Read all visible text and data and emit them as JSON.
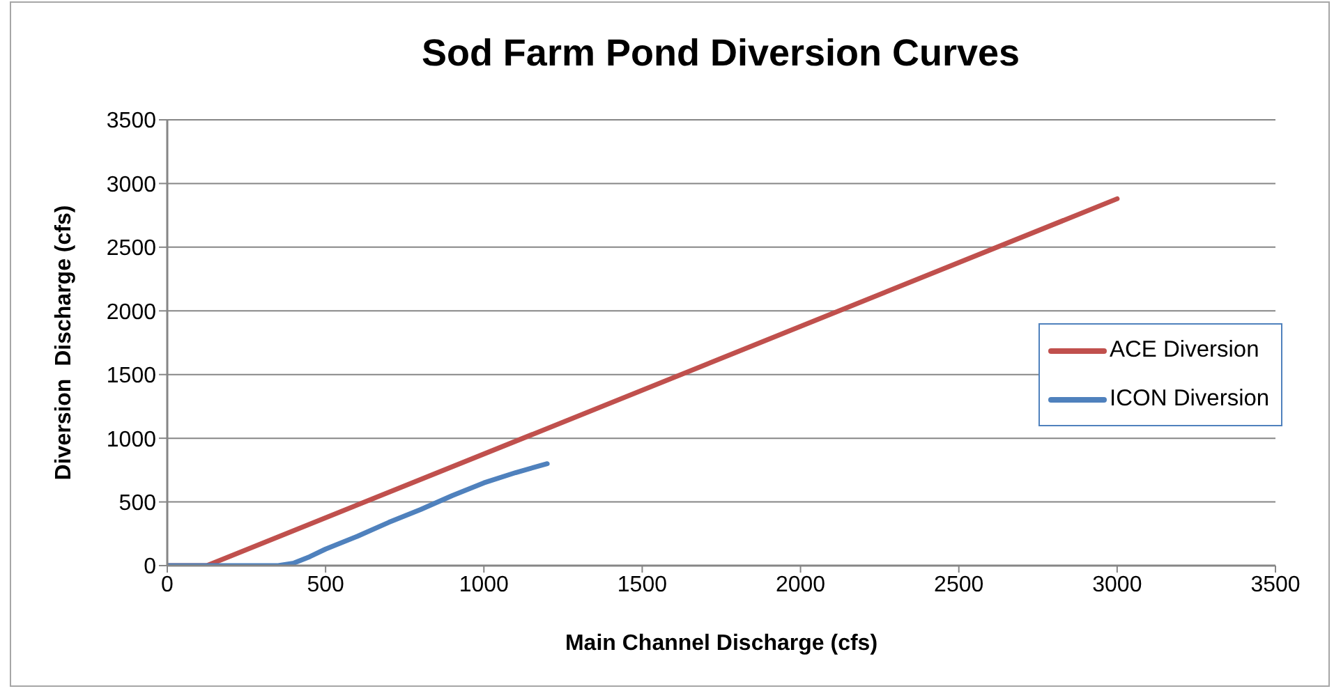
{
  "chart_data": {
    "type": "line",
    "title": "Sod Farm Pond Diversion Curves",
    "xlabel": "Main Channel Discharge (cfs)",
    "ylabel": "Diversion  Discharge (cfs)",
    "series": [
      {
        "name": "ACE Diversion",
        "color": "#c0504d",
        "x": [
          0,
          125,
          3000
        ],
        "values": [
          0,
          0,
          2880
        ]
      },
      {
        "name": "ICON Diversion",
        "color": "#4f81bd",
        "x": [
          0,
          350,
          400,
          450,
          500,
          600,
          700,
          800,
          900,
          1000,
          1100,
          1200
        ],
        "values": [
          0,
          0,
          20,
          70,
          130,
          230,
          340,
          440,
          550,
          650,
          730,
          800
        ]
      }
    ],
    "xlim": [
      0,
      3500
    ],
    "xticks": [
      0,
      500,
      1000,
      1500,
      2000,
      2500,
      3000,
      3500
    ],
    "ylim": [
      0,
      3500
    ],
    "yticks": [
      0,
      500,
      1000,
      1500,
      2000,
      2500,
      3000,
      3500
    ],
    "grid": "y",
    "legend": "right",
    "line_style": "solid"
  }
}
